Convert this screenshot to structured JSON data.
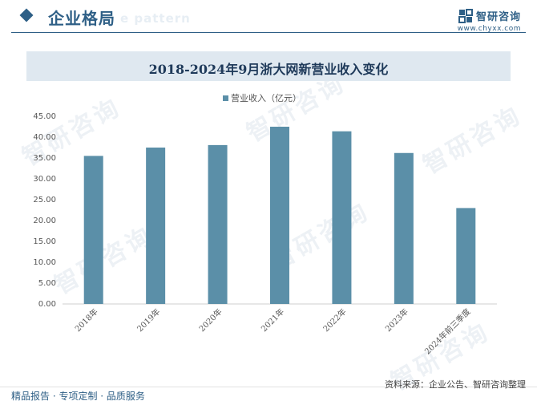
{
  "header": {
    "section_title": "企业格局",
    "watermark_text": "e pattern",
    "brand_name": "智研咨询",
    "brand_url": "www.chyxx.com",
    "accent_color": "#2e5f86"
  },
  "footer": {
    "left_text": "精品报告 · 专项定制 · 品质服务",
    "source_text": "资料来源：企业公告、智研咨询整理"
  },
  "watermarks": [
    "智研咨询",
    "智研咨询",
    "智研咨询",
    "智研咨询",
    "智研咨询",
    "智研咨询"
  ],
  "chart_data": {
    "type": "bar",
    "title": "2018-2024年9月浙大网新营业收入变化",
    "categories": [
      "2018年",
      "2019年",
      "2020年",
      "2021年",
      "2022年",
      "2023年",
      "2024年前三季度"
    ],
    "series": [
      {
        "name": "营业收入（亿元）",
        "values": [
          35.5,
          37.5,
          38.1,
          42.5,
          41.4,
          36.2,
          23.0
        ],
        "color": "#5b8fa8"
      }
    ],
    "yticks": [
      "0.00",
      "5.00",
      "10.00",
      "15.00",
      "20.00",
      "25.00",
      "30.00",
      "35.00",
      "40.00",
      "45.00"
    ],
    "ylim": [
      0,
      45
    ],
    "grid": false,
    "legend": "top-center"
  }
}
